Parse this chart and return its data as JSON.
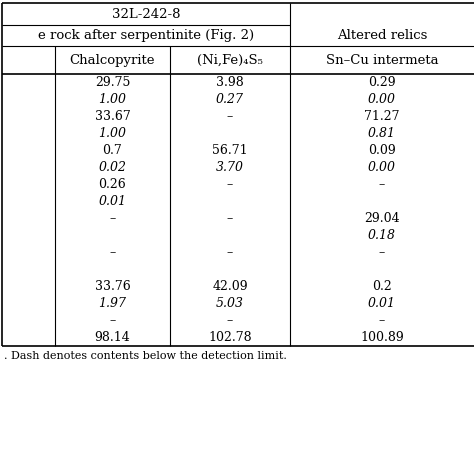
{
  "header_row1_left": "32L-242-8",
  "header_row2_left": "e rock after serpentinite (Fig. 2)",
  "header_row2_right": "Altered relics",
  "col_headers": [
    "Chalcopyrite",
    "(Ni,Fe)₄S₅",
    "Sn–Cu intermeta"
  ],
  "rows": [
    [
      "29.75",
      "3.98",
      "0.29"
    ],
    [
      "1.00",
      "0.27",
      "0.00"
    ],
    [
      "33.67",
      "–",
      "71.27"
    ],
    [
      "1.00",
      "",
      "0.81"
    ],
    [
      "0.7",
      "56.71",
      "0.09"
    ],
    [
      "0.02",
      "3.70",
      "0.00"
    ],
    [
      "0.26",
      "–",
      "–"
    ],
    [
      "0.01",
      "",
      ""
    ],
    [
      "–",
      "–",
      "29.04"
    ],
    [
      "",
      "",
      "0.18"
    ],
    [
      "–",
      "–",
      "–"
    ],
    [
      "",
      "",
      ""
    ],
    [
      "33.76",
      "42.09",
      "0.2"
    ],
    [
      "1.97",
      "5.03",
      "0.01"
    ],
    [
      "–",
      "–",
      "–"
    ],
    [
      "98.14",
      "102.78",
      "100.89"
    ]
  ],
  "italic_rows": [
    1,
    3,
    5,
    7,
    9,
    13
  ],
  "footnote": ". Dash denotes contents below the detection limit.",
  "bg_color": "#ffffff",
  "text_color": "#000000",
  "line_color": "#000000",
  "font_size": 9.0,
  "header_font_size": 9.5
}
